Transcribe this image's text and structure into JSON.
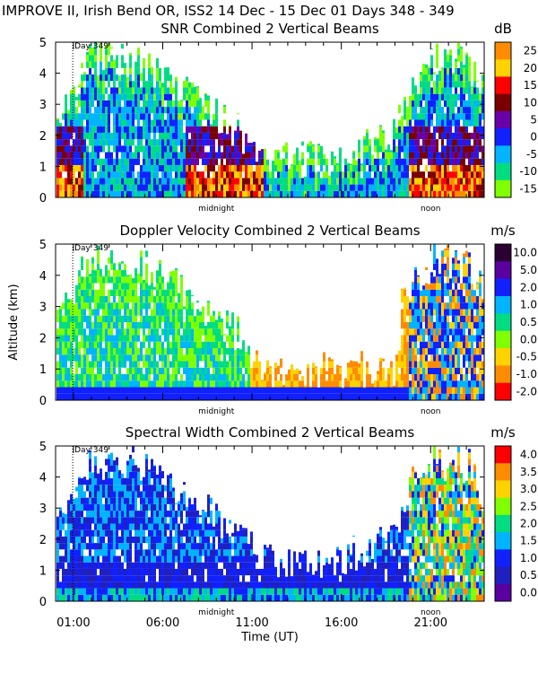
{
  "header": {
    "title": "IMPROVE II,  Irish Bend OR, ISS2  14 Dec - 15 Dec 01 Days 348 - 349"
  },
  "chart_data": [
    {
      "type": "heatmap",
      "title": "SNR Combined 2 Vertical Beams",
      "units": "dB",
      "ylim": [
        0,
        5
      ],
      "yticks": [
        "0",
        "1",
        "2",
        "3",
        "4",
        "5"
      ],
      "colorbar": {
        "labels": [
          "25",
          "20",
          "15",
          "10",
          "5",
          "0",
          "-5",
          "-10",
          "-15"
        ],
        "colors": [
          "#ff8c00",
          "#ffd200",
          "#ff0000",
          "#7a0000",
          "#6a00a8",
          "#1020ff",
          "#00b4ff",
          "#00dc82",
          "#7fff00"
        ]
      },
      "annotations": {
        "day_marker": "Day 349",
        "midnight": "midnight",
        "noon": "noon"
      }
    },
    {
      "type": "heatmap",
      "title": "Doppler Velocity Combined 2 Vertical Beams",
      "units": "m/s",
      "ylabel": "Altitude (km)",
      "ylim": [
        0,
        5
      ],
      "yticks": [
        "0",
        "1",
        "2",
        "3",
        "4",
        "5"
      ],
      "colorbar": {
        "labels": [
          "10.0",
          "5.0",
          "2.0",
          "1.0",
          "0.5",
          "0.0",
          "-0.5",
          "-1.0",
          "-2.0"
        ],
        "colors": [
          "#2a0033",
          "#5a00a0",
          "#1020ff",
          "#00b4ff",
          "#00dc82",
          "#7fff00",
          "#ffd200",
          "#ff8c00",
          "#ff0000"
        ]
      },
      "annotations": {
        "day_marker": "Day 349",
        "midnight": "midnight",
        "noon": "noon"
      }
    },
    {
      "type": "heatmap",
      "title": "Spectral Width Combined 2 Vertical Beams",
      "units": "m/s",
      "ylim": [
        0,
        5
      ],
      "yticks": [
        "0",
        "1",
        "2",
        "3",
        "4",
        "5"
      ],
      "xlabel": "Time (UT)",
      "xticks": [
        "01:00",
        "06:00",
        "11:00",
        "16:00",
        "21:00"
      ],
      "colorbar": {
        "labels": [
          "4.0",
          "3.5",
          "3.0",
          "2.5",
          "2.0",
          "1.5",
          "1.0",
          "0.5",
          "0.0"
        ],
        "colors": [
          "#ff0000",
          "#ff8c00",
          "#ffd200",
          "#7fff00",
          "#00dc82",
          "#00b4ff",
          "#1020ff",
          "#2020c0",
          "#5a00a0"
        ]
      },
      "annotations": {
        "day_marker": "Day 349",
        "midnight": "midnight",
        "noon": "noon"
      }
    }
  ]
}
